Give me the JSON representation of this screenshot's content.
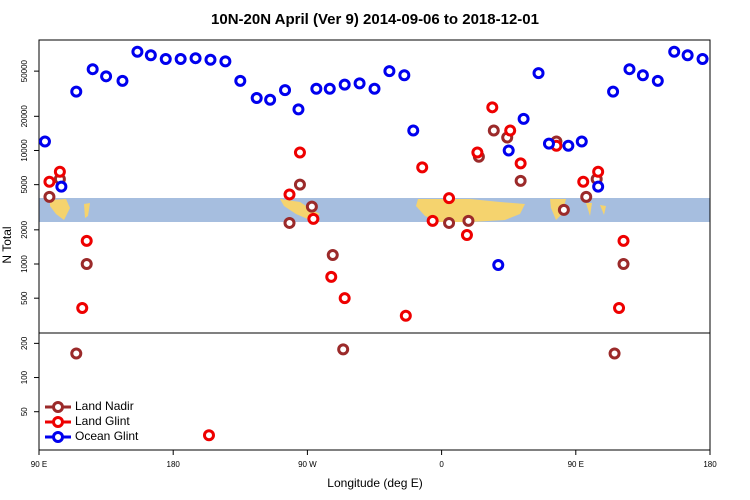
{
  "chart_data": {
    "type": "scatter",
    "title": "10N-20N April (Ver 9)   2014-09-06 to 2018-12-01",
    "x_label": "Longitude (deg E)",
    "y_label": "N Total",
    "log_y": true,
    "grid": false,
    "legend": "bottom left",
    "xlim": [
      90,
      540
    ],
    "xticks": [
      {
        "value": 90,
        "label": "90 E"
      },
      180,
      {
        "value": 270,
        "label": "90 W"
      },
      {
        "value": 360,
        "label": "0"
      },
      {
        "value": 450,
        "label": "90 E"
      },
      {
        "value": 540,
        "label": "180"
      }
    ],
    "ylim": [
      23,
      94000
    ],
    "yticks": [
      50,
      100,
      200,
      500,
      1000,
      2000,
      5000,
      10000,
      20000,
      50000
    ],
    "series": [
      {
        "name": "Land Nadir",
        "color": "#9b2a2a",
        "x": [
          97,
          104,
          115,
          122,
          258,
          265,
          273,
          287,
          294,
          365,
          378,
          385,
          395,
          404,
          413,
          437,
          442,
          457,
          464,
          476,
          482
        ],
        "values": [
          3900,
          5600,
          163,
          1000,
          2300,
          5000,
          3200,
          1200,
          177,
          2300,
          2400,
          8800,
          15000,
          13000,
          5400,
          12000,
          3000,
          3900,
          5600,
          163,
          1000
        ]
      },
      {
        "name": "Land Glint",
        "color": "#ee0000",
        "x": [
          97,
          104,
          119,
          122,
          258,
          265,
          274,
          286,
          295,
          336,
          347,
          354,
          365,
          377,
          384,
          394,
          406,
          413,
          437,
          455,
          465,
          479,
          482,
          204
        ],
        "values": [
          5300,
          6500,
          410,
          1600,
          4100,
          9600,
          2500,
          770,
          500,
          350,
          7100,
          2400,
          3800,
          1800,
          9600,
          24000,
          15000,
          7700,
          11000,
          5300,
          6500,
          410,
          1600,
          31
        ]
      },
      {
        "name": "Ocean Glint",
        "color": "#0000ee",
        "x": [
          94,
          105,
          115,
          126,
          135,
          146,
          156,
          165,
          175,
          185,
          195,
          205,
          215,
          225,
          236,
          245,
          255,
          264,
          276,
          285,
          295,
          305,
          315,
          325,
          335,
          341,
          398,
          405,
          415,
          425,
          432,
          445,
          454,
          465,
          475,
          486,
          495,
          505,
          516,
          525,
          535
        ],
        "values": [
          12000,
          4800,
          33000,
          52000,
          45000,
          41000,
          74000,
          69000,
          64000,
          64000,
          65000,
          63000,
          61000,
          41000,
          29000,
          28000,
          34000,
          23000,
          35000,
          35000,
          38000,
          39000,
          35000,
          50000,
          46000,
          15000,
          980,
          10000,
          19000,
          48000,
          11500,
          11000,
          12000,
          4800,
          33000,
          52000,
          46000,
          41000,
          74000,
          69000,
          64000
        ]
      }
    ]
  }
}
